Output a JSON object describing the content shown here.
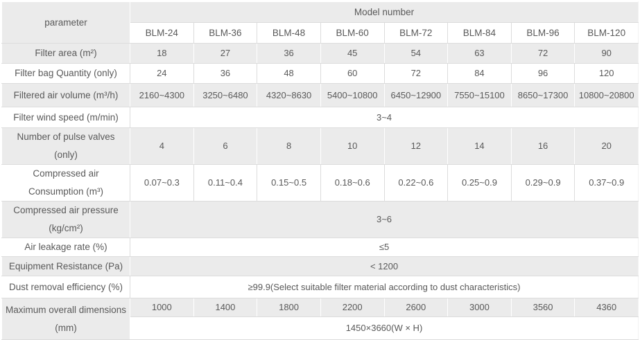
{
  "table": {
    "header": {
      "parameter_label": "parameter",
      "model_number_label": "Model number",
      "models": [
        "BLM-24",
        "BLM-36",
        "BLM-48",
        "BLM-60",
        "BLM-72",
        "BLM-84",
        "BLM-96",
        "BLM-120"
      ]
    },
    "rows": [
      {
        "label": "Filter area (m²)",
        "values": [
          "18",
          "27",
          "36",
          "45",
          "54",
          "63",
          "72",
          "90"
        ]
      },
      {
        "label": "Filter bag Quantity (only)",
        "values": [
          "24",
          "36",
          "48",
          "60",
          "72",
          "84",
          "96",
          "120"
        ]
      },
      {
        "label": "Filtered air volume (m³/h)",
        "values": [
          "2160~4300",
          "3250~6480",
          "4320~8630",
          "5400~10800",
          "6450~12900",
          "7550~15100",
          "8650~17300",
          "10800~20800"
        ]
      },
      {
        "label": "Filter wind speed (m/min)",
        "span_value": "3~4"
      },
      {
        "label": "Number of pulse valves (only)",
        "values": [
          "4",
          "6",
          "8",
          "10",
          "12",
          "14",
          "16",
          "20"
        ]
      },
      {
        "label": "Compressed air Consumption (m³)",
        "values": [
          "0.07~0.3",
          "0.11~0.4",
          "0.15~0.5",
          "0.18~0.6",
          "0.22~0.6",
          "0.25~0.9",
          "0.29~0.9",
          "0.37~0.9"
        ]
      },
      {
        "label": "Compressed air pressure (kg/cm²)",
        "span_value": "3~6"
      },
      {
        "label": "Air leakage rate (%)",
        "span_value": "≤5"
      },
      {
        "label": "Equipment Resistance (Pa)",
        "span_value": "< 1200"
      },
      {
        "label": "Dust removal efficiency (%)",
        "span_value": "≥99.9(Select suitable filter material according to dust characteristics)"
      },
      {
        "label": "Maximum overall dimensions (mm)",
        "values": [
          "1000",
          "1400",
          "1800",
          "2200",
          "2600",
          "3000",
          "3560",
          "4360"
        ],
        "second_row_span_value": "1450×3660(W × H)"
      }
    ]
  }
}
